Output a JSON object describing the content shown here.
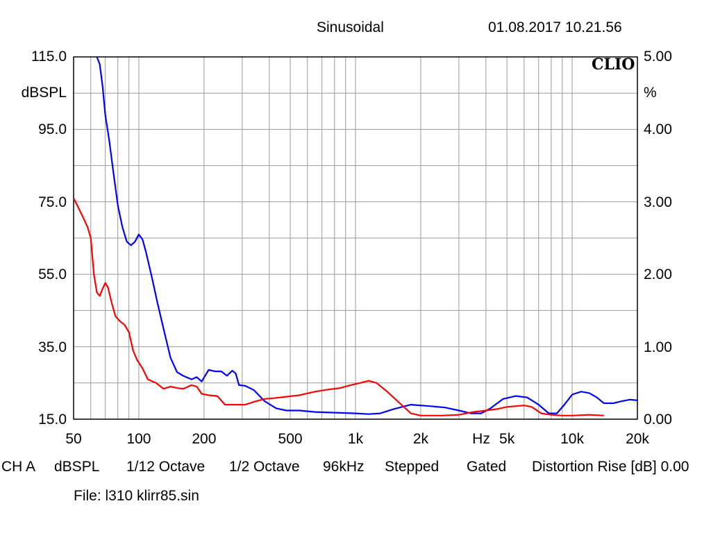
{
  "header": {
    "mode": "Sinusoidal",
    "datetime": "01.08.2017 10.21.56",
    "brand": "CLIO"
  },
  "footer": {
    "channel": "CH A",
    "unit": "dBSPL",
    "smoothing": "1/12 Octave",
    "step": "1/2 Octave",
    "rate": "96kHz",
    "sweep": "Stepped",
    "gate": "Gated",
    "distortion": "Distortion Rise [dB] 0.00",
    "file": "File: l310 klirr85.sin"
  },
  "colors": {
    "grid": "#9a9a9a",
    "frame": "#000000",
    "curve_blue": "#0000ff",
    "curve_red": "#ff0000"
  },
  "chart_data": {
    "type": "line",
    "xscale": "log",
    "xlim": [
      50,
      20000
    ],
    "ylim_left": [
      15,
      115
    ],
    "ylim_right": [
      0,
      5
    ],
    "ylabel_left": "dBSPL",
    "ylabel_right": "%",
    "xlabel": "Hz",
    "x_ticks": [
      {
        "value": 50,
        "label": "50"
      },
      {
        "value": 100,
        "label": "100"
      },
      {
        "value": 200,
        "label": "200"
      },
      {
        "value": 500,
        "label": "500"
      },
      {
        "value": 1000,
        "label": "1k"
      },
      {
        "value": 2000,
        "label": "2k"
      },
      {
        "value": 5000,
        "label": "5k"
      },
      {
        "value": 10000,
        "label": "10k"
      },
      {
        "value": 20000,
        "label": "20k"
      }
    ],
    "y_ticks_left": [
      "115.0",
      "95.0",
      "75.0",
      "55.0",
      "35.0",
      "15.0"
    ],
    "y_ticks_right": [
      "5.00",
      "4.00",
      "3.00",
      "2.00",
      "1.00",
      "0.00"
    ],
    "grid": true,
    "series": [
      {
        "color": "#0000ff",
        "axis": "right",
        "points": [
          [
            64,
            5.0
          ],
          [
            66,
            4.9
          ],
          [
            68,
            4.6
          ],
          [
            70,
            4.2
          ],
          [
            73,
            3.85
          ],
          [
            76,
            3.45
          ],
          [
            80,
            2.95
          ],
          [
            84,
            2.65
          ],
          [
            88,
            2.45
          ],
          [
            92,
            2.4
          ],
          [
            96,
            2.45
          ],
          [
            100,
            2.55
          ],
          [
            104,
            2.48
          ],
          [
            108,
            2.3
          ],
          [
            115,
            1.95
          ],
          [
            122,
            1.6
          ],
          [
            130,
            1.25
          ],
          [
            140,
            0.85
          ],
          [
            150,
            0.65
          ],
          [
            160,
            0.6
          ],
          [
            175,
            0.55
          ],
          [
            185,
            0.58
          ],
          [
            195,
            0.52
          ],
          [
            210,
            0.68
          ],
          [
            225,
            0.66
          ],
          [
            240,
            0.66
          ],
          [
            255,
            0.6
          ],
          [
            270,
            0.67
          ],
          [
            280,
            0.63
          ],
          [
            290,
            0.47
          ],
          [
            310,
            0.46
          ],
          [
            340,
            0.4
          ],
          [
            380,
            0.25
          ],
          [
            430,
            0.15
          ],
          [
            480,
            0.12
          ],
          [
            550,
            0.12
          ],
          [
            650,
            0.1
          ],
          [
            800,
            0.09
          ],
          [
            1000,
            0.08
          ],
          [
            1150,
            0.07
          ],
          [
            1300,
            0.08
          ],
          [
            1500,
            0.14
          ],
          [
            1800,
            0.2
          ],
          [
            2200,
            0.18
          ],
          [
            2600,
            0.16
          ],
          [
            3000,
            0.12
          ],
          [
            3400,
            0.08
          ],
          [
            3800,
            0.08
          ],
          [
            4200,
            0.15
          ],
          [
            4800,
            0.28
          ],
          [
            5500,
            0.32
          ],
          [
            6200,
            0.3
          ],
          [
            7000,
            0.2
          ],
          [
            7800,
            0.08
          ],
          [
            8500,
            0.08
          ],
          [
            9200,
            0.2
          ],
          [
            10000,
            0.34
          ],
          [
            11000,
            0.38
          ],
          [
            12000,
            0.36
          ],
          [
            13000,
            0.3
          ],
          [
            14000,
            0.22
          ],
          [
            15500,
            0.22
          ],
          [
            17000,
            0.25
          ],
          [
            18500,
            0.27
          ],
          [
            20000,
            0.26
          ]
        ]
      },
      {
        "color": "#ff0000",
        "axis": "right",
        "points": [
          [
            50,
            3.05
          ],
          [
            52,
            2.95
          ],
          [
            55,
            2.8
          ],
          [
            58,
            2.65
          ],
          [
            60,
            2.5
          ],
          [
            62,
            2.0
          ],
          [
            64,
            1.75
          ],
          [
            66,
            1.7
          ],
          [
            68,
            1.8
          ],
          [
            70,
            1.88
          ],
          [
            72,
            1.82
          ],
          [
            75,
            1.6
          ],
          [
            78,
            1.42
          ],
          [
            82,
            1.35
          ],
          [
            86,
            1.3
          ],
          [
            90,
            1.2
          ],
          [
            94,
            0.95
          ],
          [
            98,
            0.82
          ],
          [
            104,
            0.7
          ],
          [
            110,
            0.55
          ],
          [
            120,
            0.5
          ],
          [
            130,
            0.42
          ],
          [
            140,
            0.45
          ],
          [
            150,
            0.43
          ],
          [
            160,
            0.42
          ],
          [
            175,
            0.47
          ],
          [
            185,
            0.45
          ],
          [
            195,
            0.35
          ],
          [
            210,
            0.33
          ],
          [
            230,
            0.32
          ],
          [
            250,
            0.2
          ],
          [
            280,
            0.2
          ],
          [
            310,
            0.2
          ],
          [
            340,
            0.24
          ],
          [
            380,
            0.28
          ],
          [
            420,
            0.29
          ],
          [
            480,
            0.31
          ],
          [
            550,
            0.33
          ],
          [
            650,
            0.38
          ],
          [
            750,
            0.41
          ],
          [
            850,
            0.43
          ],
          [
            950,
            0.47
          ],
          [
            1050,
            0.5
          ],
          [
            1150,
            0.53
          ],
          [
            1250,
            0.5
          ],
          [
            1400,
            0.38
          ],
          [
            1600,
            0.22
          ],
          [
            1800,
            0.08
          ],
          [
            2000,
            0.05
          ],
          [
            2500,
            0.05
          ],
          [
            3000,
            0.06
          ],
          [
            3500,
            0.1
          ],
          [
            4000,
            0.12
          ],
          [
            4500,
            0.14
          ],
          [
            5000,
            0.17
          ],
          [
            5500,
            0.18
          ],
          [
            6000,
            0.19
          ],
          [
            6500,
            0.17
          ],
          [
            7200,
            0.08
          ],
          [
            8000,
            0.06
          ],
          [
            9000,
            0.05
          ],
          [
            10000,
            0.05
          ],
          [
            12000,
            0.06
          ],
          [
            14000,
            0.05
          ]
        ]
      }
    ]
  }
}
